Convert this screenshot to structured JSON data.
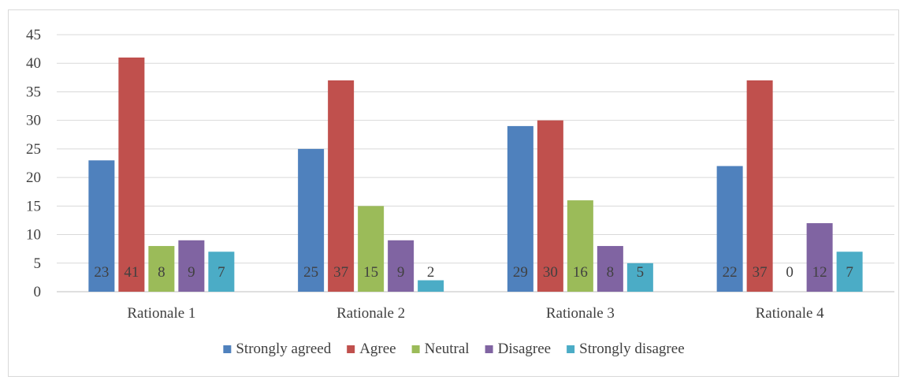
{
  "chart_data": {
    "type": "bar",
    "categories": [
      "Rationale 1",
      "Rationale 2",
      "Rationale 3",
      "Rationale 4"
    ],
    "series": [
      {
        "name": "Strongly agreed",
        "color": "#4f81bd",
        "values": [
          23,
          25,
          29,
          22
        ]
      },
      {
        "name": "Agree",
        "color": "#c0504d",
        "values": [
          41,
          37,
          30,
          37
        ]
      },
      {
        "name": "Neutral",
        "color": "#9bbb59",
        "values": [
          8,
          15,
          16,
          0
        ]
      },
      {
        "name": "Disagree",
        "color": "#8064a2",
        "values": [
          9,
          9,
          8,
          12
        ]
      },
      {
        "name": "Strongly disagree",
        "color": "#4bacc6",
        "values": [
          7,
          2,
          5,
          7
        ]
      }
    ],
    "ylim": [
      0,
      45
    ],
    "yticks": [
      0,
      5,
      10,
      15,
      20,
      25,
      30,
      35,
      40,
      45
    ],
    "grid": true,
    "legend": "bottom",
    "data_labels": true
  }
}
